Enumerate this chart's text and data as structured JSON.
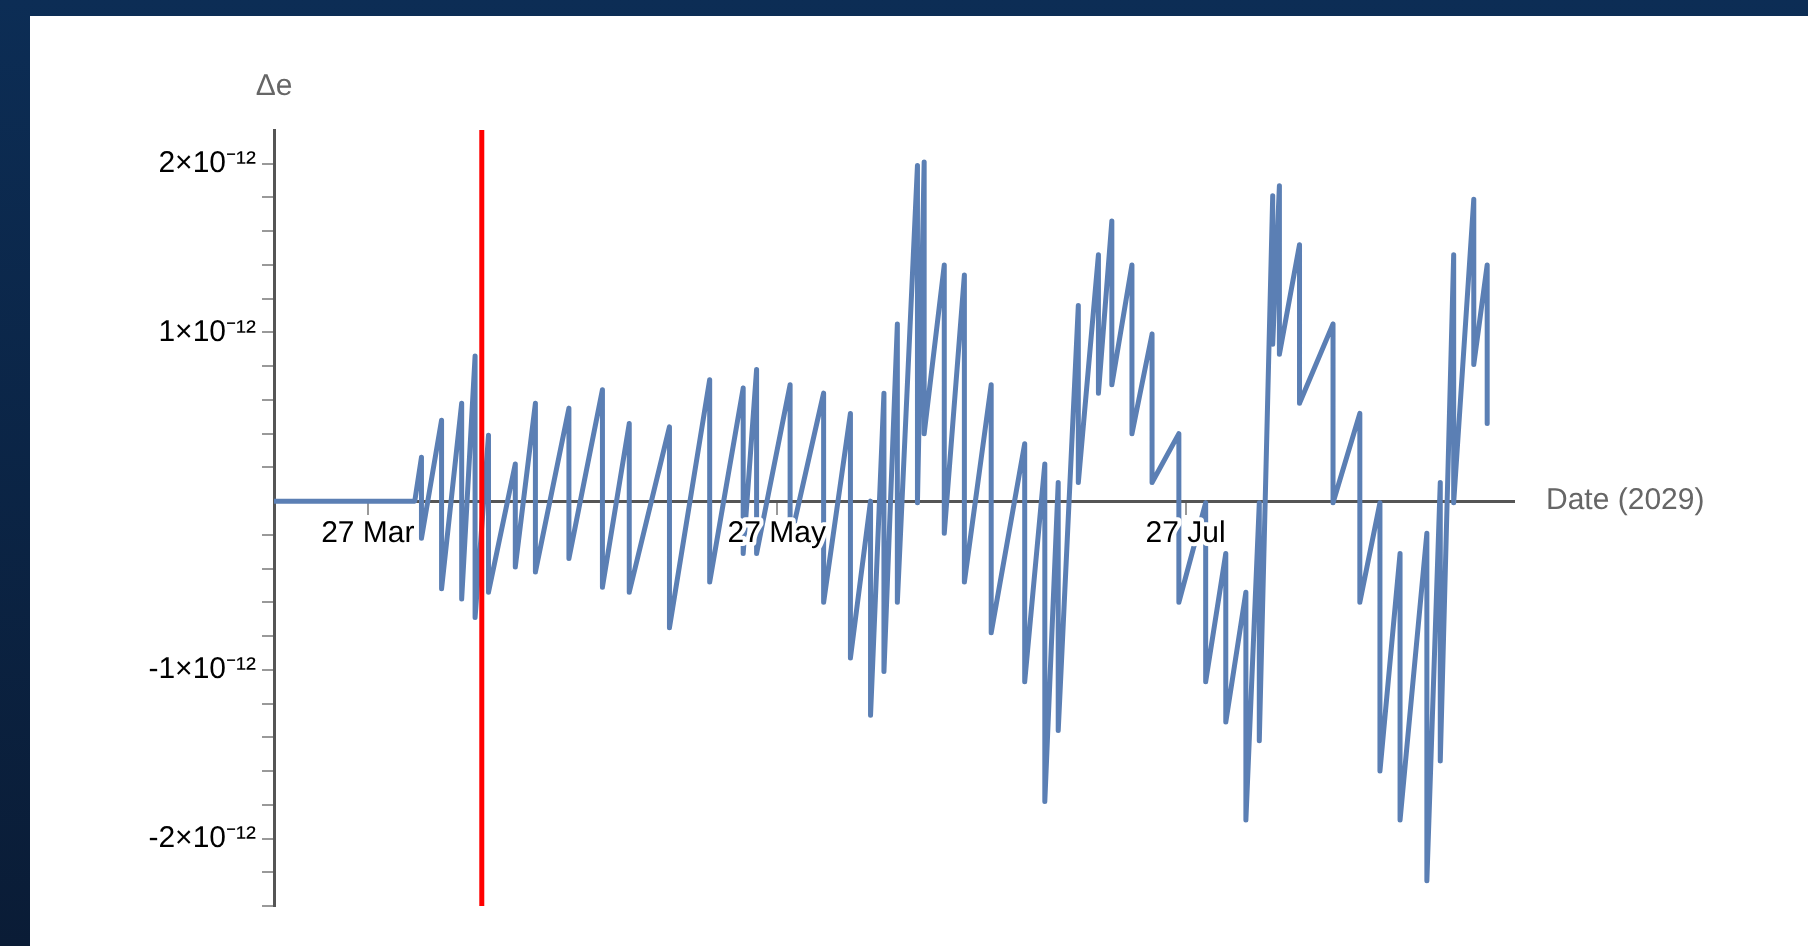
{
  "chart_data": {
    "type": "line",
    "xlabel": "Date (2029)",
    "ylabel": "Δe",
    "marker": "none",
    "xlim": [
      "2029-03-13",
      "2029-09-14"
    ],
    "xticks": [
      {
        "value": "2029-03-27",
        "label": "27 Mar"
      },
      {
        "value": "2029-05-27",
        "label": "27 May"
      },
      {
        "value": "2029-07-27",
        "label": "27 Jul"
      }
    ],
    "ylim": [
      -2.4e-12,
      2.2e-12
    ],
    "yticks": [
      {
        "value": -2.4e-12,
        "label": null
      },
      {
        "value": -2.2e-12,
        "label": null
      },
      {
        "value": -2e-12,
        "label": "-2×10⁻¹²"
      },
      {
        "value": -1.8e-12,
        "label": null
      },
      {
        "value": -1.6e-12,
        "label": null
      },
      {
        "value": -1.4e-12,
        "label": null
      },
      {
        "value": -1.2e-12,
        "label": null
      },
      {
        "value": -1e-12,
        "label": "-1×10⁻¹²"
      },
      {
        "value": -8e-13,
        "label": null
      },
      {
        "value": -6e-13,
        "label": null
      },
      {
        "value": -4e-13,
        "label": null
      },
      {
        "value": -2e-13,
        "label": null
      },
      {
        "value": 2e-13,
        "label": null
      },
      {
        "value": 4e-13,
        "label": null
      },
      {
        "value": 6e-13,
        "label": null
      },
      {
        "value": 8e-13,
        "label": null
      },
      {
        "value": 1e-12,
        "label": "1×10⁻¹²"
      },
      {
        "value": 1.2e-12,
        "label": null
      },
      {
        "value": 1.4e-12,
        "label": null
      },
      {
        "value": 1.6e-12,
        "label": null
      },
      {
        "value": 1.8e-12,
        "label": null
      },
      {
        "value": 2e-12,
        "label": "2×10⁻¹²"
      }
    ],
    "ref_lines": [
      {
        "axis": "x",
        "value": "2029-04-13",
        "color": "#ff0000"
      }
    ],
    "x": [
      "2029-03-13",
      "2029-04-03",
      "2029-04-04",
      "2029-04-04",
      "2029-04-07",
      "2029-04-07",
      "2029-04-10",
      "2029-04-10",
      "2029-04-12",
      "2029-04-12",
      "2029-04-14",
      "2029-04-14",
      "2029-04-18",
      "2029-04-18",
      "2029-04-21",
      "2029-04-21",
      "2029-04-26",
      "2029-04-26",
      "2029-05-01",
      "2029-05-01",
      "2029-05-05",
      "2029-05-05",
      "2029-05-11",
      "2029-05-11",
      "2029-05-17",
      "2029-05-17",
      "2029-05-22",
      "2029-05-22",
      "2029-05-24",
      "2029-05-24",
      "2029-05-29",
      "2029-05-29",
      "2029-06-03",
      "2029-06-03",
      "2029-06-07",
      "2029-06-07",
      "2029-06-10",
      "2029-06-10",
      "2029-06-12",
      "2029-06-12",
      "2029-06-14",
      "2029-06-14",
      "2029-06-17",
      "2029-06-17",
      "2029-06-18",
      "2029-06-18",
      "2029-06-21",
      "2029-06-21",
      "2029-06-24",
      "2029-06-24",
      "2029-06-28",
      "2029-06-28",
      "2029-07-03",
      "2029-07-03",
      "2029-07-06",
      "2029-07-06",
      "2029-07-08",
      "2029-07-08",
      "2029-07-11",
      "2029-07-11",
      "2029-07-14",
      "2029-07-14",
      "2029-07-16",
      "2029-07-16",
      "2029-07-19",
      "2029-07-19",
      "2029-07-22",
      "2029-07-22",
      "2029-07-26",
      "2029-07-26",
      "2029-07-30",
      "2029-07-30",
      "2029-08-02",
      "2029-08-02",
      "2029-08-05",
      "2029-08-05",
      "2029-08-07",
      "2029-08-07",
      "2029-08-09",
      "2029-08-09",
      "2029-08-10",
      "2029-08-10",
      "2029-08-13",
      "2029-08-13",
      "2029-08-18",
      "2029-08-18",
      "2029-08-22",
      "2029-08-22",
      "2029-08-25",
      "2029-08-25",
      "2029-08-28",
      "2029-08-28",
      "2029-09-01",
      "2029-09-01",
      "2029-09-03",
      "2029-09-03",
      "2029-09-05",
      "2029-09-05",
      "2029-09-08",
      "2029-09-08",
      "2029-09-10",
      "2029-09-10"
    ],
    "series": [
      {
        "color": "#5b7fb4",
        "values": [
          0,
          0,
          2.6e-13,
          -2.2e-13,
          4.8e-13,
          -5.2e-13,
          5.8e-13,
          -5.8e-13,
          8.6e-13,
          -6.9e-13,
          3.9e-13,
          -5.4e-13,
          2.2e-13,
          -3.9e-13,
          5.8e-13,
          -4.2e-13,
          5.5e-13,
          -3.4e-13,
          6.6e-13,
          -5.1e-13,
          4.6e-13,
          -5.4e-13,
          4.4e-13,
          -7.5e-13,
          7.2e-13,
          -4.8e-13,
          6.7e-13,
          -3.1e-13,
          7.8e-13,
          -3.1e-13,
          6.9e-13,
          -2.4e-13,
          6.4e-13,
          -6e-13,
          5.2e-13,
          -9.3e-13,
          0,
          -1.27e-12,
          6.4e-13,
          -1.01e-12,
          1.05e-12,
          -6e-13,
          1.99e-12,
          -1e-14,
          2.01e-12,
          4e-13,
          1.4e-12,
          -1.9e-13,
          1.34e-12,
          -4.8e-13,
          6.9e-13,
          -7.8e-13,
          3.4e-13,
          -1.07e-12,
          2.2e-13,
          -1.78e-12,
          1.1e-13,
          -1.36e-12,
          1.16e-12,
          1.1e-13,
          1.46e-12,
          6.4e-13,
          1.66e-12,
          6.9e-13,
          1.4e-12,
          4e-13,
          9.9e-13,
          1.1e-13,
          4e-13,
          -6e-13,
          -1e-14,
          -1.07e-12,
          -3.1e-13,
          -1.31e-12,
          -5.4e-13,
          -1.89e-12,
          -1e-14,
          -1.42e-12,
          1.81e-12,
          9.3e-13,
          1.87e-12,
          8.7e-13,
          1.52e-12,
          5.8e-13,
          1.05e-12,
          -1e-14,
          5.2e-13,
          -6e-13,
          -1e-14,
          -1.6e-12,
          -3.1e-13,
          -1.89e-12,
          -1.9e-13,
          -2.25e-12,
          1.1e-13,
          -1.54e-12,
          1.46e-12,
          -1e-14,
          1.79e-12,
          8.1e-13,
          1.4e-12,
          4.6e-13
        ]
      }
    ]
  }
}
